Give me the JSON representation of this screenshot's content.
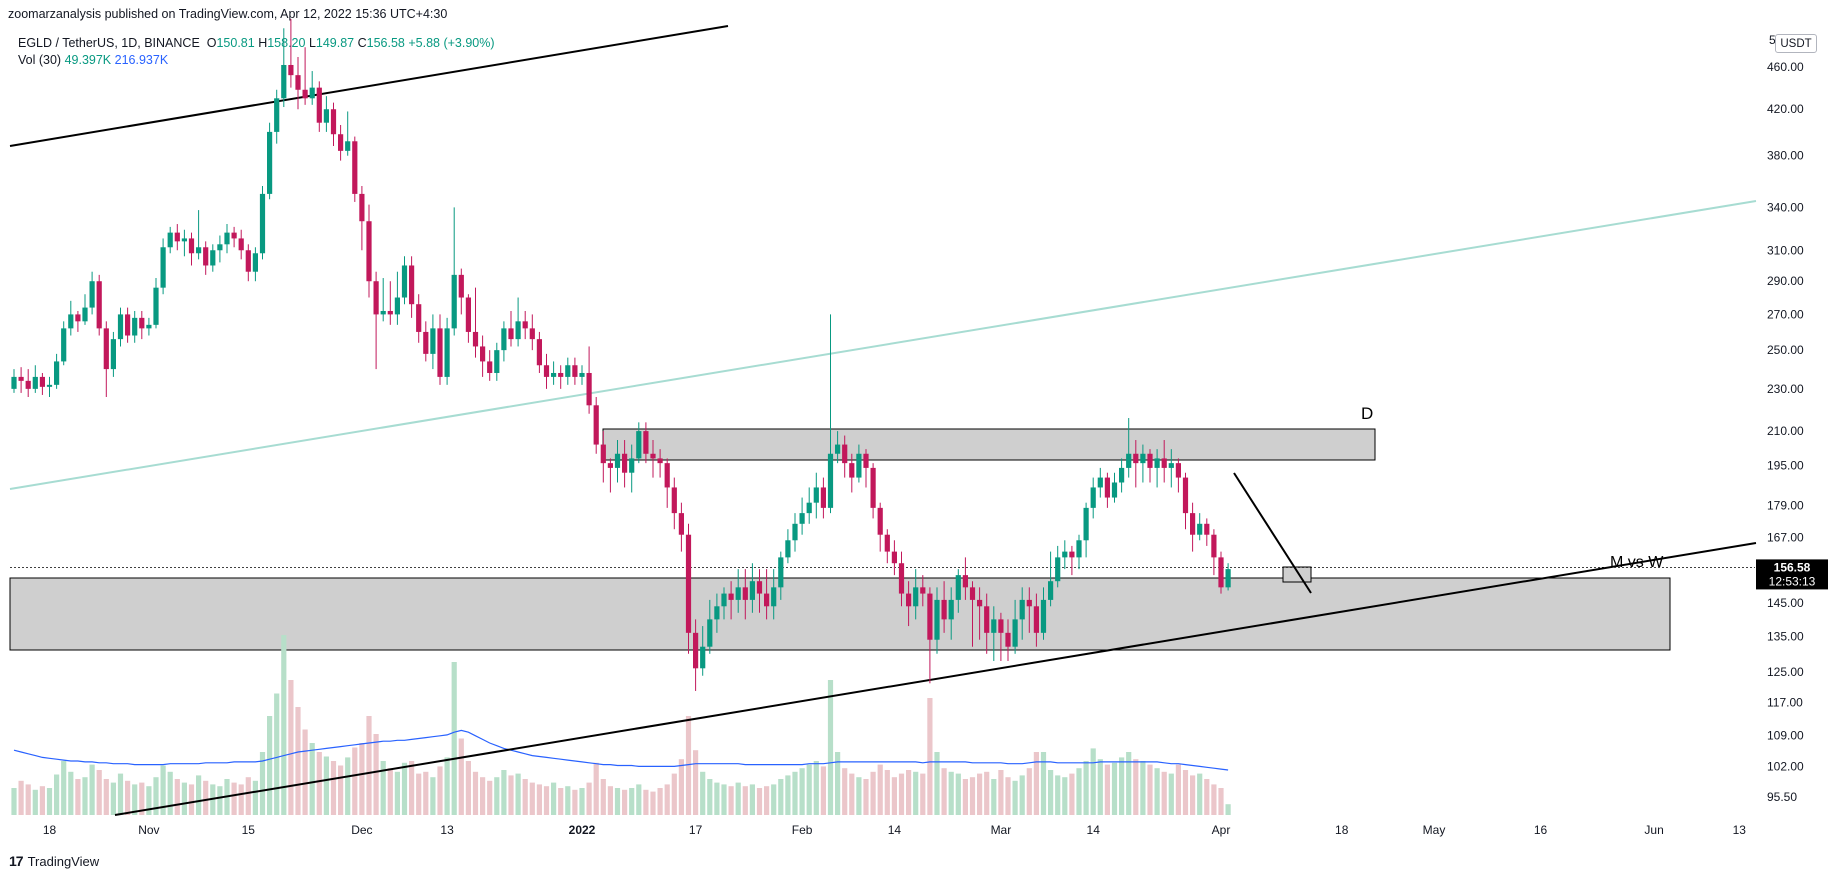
{
  "publisher_line": "zoomarzanalysis published on TradingView.com, Apr 12, 2022 15:36 UTC+4:30",
  "legend": {
    "symbol": "EGLD / TetherUS, 1D, BINANCE",
    "open_label": "O",
    "open": "150.81",
    "high_label": "H",
    "high": "158.20",
    "low_label": "L",
    "low": "149.87",
    "close_label": "C",
    "close": "156.58",
    "change": "+5.88 (+3.90%)",
    "vol_label": "Vol (30)",
    "vol_value": "49.397K",
    "vol_ma": "216.937K"
  },
  "currency_button": "USDT",
  "axis_top_fragment": "5",
  "price_tag": {
    "price": "156.58",
    "countdown": "12:53:13"
  },
  "annotations": {
    "zone_label": "D",
    "pattern_label": "M vs W"
  },
  "branding": "TradingView",
  "colors": {
    "up": "#089981",
    "down": "#c2185b",
    "vol_up": "#b7dfc9",
    "vol_down": "#ebc6ca",
    "zone": "#cfcfcf",
    "ma": "#2962ff",
    "channel": "#a7dcd2"
  },
  "chart_data": {
    "type": "candlestick",
    "y_scale": "log",
    "y_ticks": [
      95.5,
      102.0,
      109.0,
      117.0,
      125.0,
      135.0,
      145.0,
      156.58,
      167.0,
      179.0,
      195.0,
      210.0,
      230.0,
      250.0,
      270.0,
      290.0,
      310.0,
      340.0,
      380.0,
      420.0,
      460.0
    ],
    "y_tick_labels": [
      "95.50",
      "102.00",
      "109.00",
      "117.00",
      "125.00",
      "135.00",
      "145.00",
      "",
      "167.00",
      "179.00",
      "195.00",
      "210.00",
      "230.00",
      "250.00",
      "270.00",
      "290.00",
      "310.00",
      "340.00",
      "380.00",
      "420.00",
      "460.00"
    ],
    "x_labels": [
      "18",
      "Nov",
      "15",
      "Dec",
      "13",
      "2022",
      "17",
      "Feb",
      "14",
      "Mar",
      "14",
      "Apr",
      "18",
      "May",
      "16",
      "Jun",
      "13"
    ],
    "x_label_dates": [
      "2021-10-18",
      "2021-11-01",
      "2021-11-15",
      "2021-12-01",
      "2021-12-13",
      "2022-01-01",
      "2022-01-17",
      "2022-02-01",
      "2022-02-14",
      "2022-03-01",
      "2022-03-14",
      "2022-04-01",
      "2022-04-18",
      "2022-05-01",
      "2022-05-16",
      "2022-06-01",
      "2022-06-13"
    ],
    "candles": [
      [
        230,
        236,
        240,
        228
      ],
      [
        236,
        234,
        241,
        228
      ],
      [
        234,
        230,
        240,
        226
      ],
      [
        230,
        236,
        242,
        228
      ],
      [
        236,
        231,
        238,
        227
      ],
      [
        231,
        232,
        236,
        226
      ],
      [
        232,
        244,
        248,
        230
      ],
      [
        244,
        262,
        266,
        242
      ],
      [
        262,
        270,
        278,
        258
      ],
      [
        270,
        266,
        272,
        260
      ],
      [
        266,
        274,
        282,
        264
      ],
      [
        274,
        290,
        296,
        270
      ],
      [
        290,
        262,
        294,
        258
      ],
      [
        262,
        240,
        266,
        226
      ],
      [
        240,
        256,
        260,
        236
      ],
      [
        256,
        270,
        274,
        252
      ],
      [
        270,
        258,
        274,
        254
      ],
      [
        258,
        268,
        272,
        254
      ],
      [
        268,
        262,
        272,
        256
      ],
      [
        262,
        264,
        268,
        258
      ],
      [
        264,
        286,
        292,
        262
      ],
      [
        286,
        312,
        318,
        282
      ],
      [
        312,
        322,
        326,
        308
      ],
      [
        322,
        316,
        328,
        310
      ],
      [
        316,
        318,
        324,
        306
      ],
      [
        318,
        308,
        322,
        300
      ],
      [
        308,
        312,
        338,
        304
      ],
      [
        312,
        300,
        316,
        294
      ],
      [
        300,
        310,
        314,
        296
      ],
      [
        310,
        314,
        320,
        302
      ],
      [
        314,
        322,
        328,
        308
      ],
      [
        322,
        318,
        326,
        312
      ],
      [
        318,
        310,
        324,
        304
      ],
      [
        310,
        296,
        314,
        290
      ],
      [
        296,
        308,
        312,
        290
      ],
      [
        308,
        350,
        356,
        304
      ],
      [
        350,
        400,
        408,
        346
      ],
      [
        400,
        430,
        438,
        390
      ],
      [
        430,
        462,
        500,
        422
      ],
      [
        462,
        452,
        510,
        440
      ],
      [
        452,
        438,
        470,
        420
      ],
      [
        438,
        430,
        480,
        424
      ],
      [
        430,
        440,
        456,
        424
      ],
      [
        440,
        408,
        446,
        400
      ],
      [
        408,
        420,
        432,
        400
      ],
      [
        420,
        398,
        426,
        388
      ],
      [
        398,
        384,
        406,
        376
      ],
      [
        384,
        392,
        418,
        380
      ],
      [
        392,
        350,
        396,
        344
      ],
      [
        350,
        330,
        356,
        310
      ],
      [
        330,
        290,
        342,
        280
      ],
      [
        290,
        270,
        296,
        240
      ],
      [
        270,
        272,
        292,
        266
      ],
      [
        272,
        270,
        290,
        264
      ],
      [
        270,
        280,
        296,
        264
      ],
      [
        280,
        300,
        306,
        276
      ],
      [
        300,
        276,
        306,
        268
      ],
      [
        276,
        260,
        282,
        254
      ],
      [
        260,
        248,
        266,
        244
      ],
      [
        248,
        262,
        270,
        240
      ],
      [
        262,
        236,
        270,
        232
      ],
      [
        236,
        262,
        268,
        232
      ],
      [
        262,
        294,
        340,
        258
      ],
      [
        294,
        280,
        298,
        270
      ],
      [
        280,
        260,
        282,
        254
      ],
      [
        260,
        252,
        286,
        246
      ],
      [
        252,
        244,
        258,
        236
      ],
      [
        244,
        238,
        250,
        234
      ],
      [
        238,
        250,
        254,
        234
      ],
      [
        250,
        262,
        266,
        244
      ],
      [
        262,
        256,
        272,
        252
      ],
      [
        256,
        266,
        280,
        252
      ],
      [
        266,
        262,
        272,
        256
      ],
      [
        262,
        256,
        270,
        250
      ],
      [
        256,
        242,
        260,
        238
      ],
      [
        242,
        236,
        248,
        230
      ],
      [
        236,
        238,
        244,
        232
      ],
      [
        238,
        236,
        242,
        230
      ],
      [
        236,
        242,
        246,
        232
      ],
      [
        242,
        236,
        246,
        232
      ],
      [
        236,
        238,
        242,
        232
      ],
      [
        238,
        222,
        252,
        218
      ],
      [
        222,
        204,
        226,
        200
      ],
      [
        204,
        196,
        210,
        188
      ],
      [
        196,
        194,
        198,
        184
      ],
      [
        194,
        200,
        206,
        188
      ],
      [
        200,
        192,
        206,
        186
      ],
      [
        192,
        198,
        204,
        184
      ],
      [
        198,
        210,
        214,
        196
      ],
      [
        210,
        200,
        214,
        196
      ],
      [
        200,
        198,
        206,
        190
      ],
      [
        198,
        196,
        202,
        190
      ],
      [
        196,
        186,
        198,
        178
      ],
      [
        186,
        176,
        190,
        170
      ],
      [
        176,
        168,
        180,
        162
      ],
      [
        168,
        136,
        172,
        130
      ],
      [
        136,
        126,
        140,
        120
      ],
      [
        126,
        132,
        138,
        124
      ],
      [
        132,
        140,
        146,
        130
      ],
      [
        140,
        144,
        148,
        136
      ],
      [
        144,
        148,
        150,
        140
      ],
      [
        148,
        146,
        152,
        140
      ],
      [
        146,
        150,
        156,
        142
      ],
      [
        150,
        146,
        156,
        140
      ],
      [
        146,
        152,
        158,
        142
      ],
      [
        152,
        148,
        156,
        142
      ],
      [
        148,
        144,
        156,
        140
      ],
      [
        144,
        150,
        156,
        140
      ],
      [
        150,
        160,
        162,
        146
      ],
      [
        160,
        166,
        170,
        158
      ],
      [
        166,
        172,
        176,
        162
      ],
      [
        172,
        176,
        182,
        168
      ],
      [
        176,
        180,
        186,
        172
      ],
      [
        180,
        186,
        192,
        174
      ],
      [
        186,
        178,
        190,
        174
      ],
      [
        178,
        200,
        270,
        176
      ],
      [
        200,
        204,
        210,
        196
      ],
      [
        204,
        196,
        208,
        190
      ],
      [
        196,
        190,
        200,
        184
      ],
      [
        190,
        200,
        204,
        188
      ],
      [
        200,
        194,
        202,
        186
      ],
      [
        194,
        178,
        196,
        174
      ],
      [
        178,
        168,
        180,
        162
      ],
      [
        168,
        162,
        170,
        158
      ],
      [
        162,
        158,
        166,
        154
      ],
      [
        158,
        148,
        162,
        144
      ],
      [
        148,
        144,
        152,
        138
      ],
      [
        144,
        150,
        156,
        140
      ],
      [
        150,
        148,
        154,
        144
      ],
      [
        148,
        134,
        150,
        122
      ],
      [
        134,
        146,
        150,
        130
      ],
      [
        146,
        140,
        152,
        136
      ],
      [
        140,
        146,
        150,
        134
      ],
      [
        146,
        154,
        156,
        142
      ],
      [
        154,
        150,
        160,
        146
      ],
      [
        150,
        146,
        152,
        132
      ],
      [
        146,
        144,
        150,
        134
      ],
      [
        144,
        136,
        148,
        130
      ],
      [
        136,
        140,
        144,
        128
      ],
      [
        140,
        136,
        142,
        128
      ],
      [
        136,
        132,
        140,
        128
      ],
      [
        132,
        140,
        146,
        130
      ],
      [
        140,
        146,
        150,
        134
      ],
      [
        146,
        144,
        150,
        136
      ],
      [
        144,
        136,
        148,
        132
      ],
      [
        136,
        146,
        150,
        134
      ],
      [
        146,
        152,
        162,
        144
      ],
      [
        152,
        160,
        164,
        150
      ],
      [
        160,
        162,
        166,
        156
      ],
      [
        162,
        160,
        164,
        154
      ],
      [
        160,
        166,
        168,
        156
      ],
      [
        166,
        178,
        180,
        160
      ],
      [
        178,
        186,
        190,
        174
      ],
      [
        186,
        190,
        194,
        182
      ],
      [
        190,
        182,
        192,
        178
      ],
      [
        182,
        188,
        192,
        180
      ],
      [
        188,
        194,
        198,
        184
      ],
      [
        194,
        200,
        216,
        190
      ],
      [
        200,
        196,
        206,
        186
      ],
      [
        196,
        200,
        204,
        188
      ],
      [
        200,
        194,
        202,
        188
      ],
      [
        194,
        198,
        202,
        186
      ],
      [
        198,
        194,
        206,
        188
      ],
      [
        194,
        196,
        202,
        186
      ],
      [
        196,
        190,
        198,
        184
      ],
      [
        190,
        176,
        192,
        170
      ],
      [
        176,
        168,
        180,
        162
      ],
      [
        168,
        172,
        176,
        166
      ],
      [
        172,
        168,
        174,
        164
      ],
      [
        168,
        160,
        170,
        154
      ],
      [
        160,
        150,
        162,
        148
      ],
      [
        150,
        156,
        158,
        149
      ]
    ],
    "volume": [
      30,
      38,
      34,
      28,
      32,
      30,
      45,
      60,
      48,
      40,
      42,
      56,
      50,
      40,
      36,
      46,
      38,
      34,
      36,
      32,
      42,
      55,
      48,
      40,
      36,
      34,
      44,
      38,
      34,
      32,
      40,
      36,
      34,
      42,
      38,
      70,
      110,
      135,
      200,
      150,
      120,
      95,
      80,
      70,
      65,
      60,
      55,
      64,
      75,
      80,
      110,
      90,
      60,
      52,
      48,
      58,
      60,
      46,
      48,
      42,
      54,
      64,
      170,
      85,
      60,
      48,
      42,
      38,
      42,
      50,
      44,
      46,
      40,
      36,
      34,
      32,
      36,
      30,
      32,
      28,
      30,
      36,
      58,
      40,
      32,
      30,
      28,
      30,
      34,
      28,
      26,
      30,
      34,
      46,
      62,
      110,
      72,
      48,
      40,
      36,
      34,
      32,
      36,
      32,
      34,
      30,
      32,
      34,
      40,
      44,
      48,
      52,
      56,
      60,
      54,
      150,
      70,
      52,
      46,
      42,
      40,
      48,
      56,
      50,
      42,
      46,
      50,
      48,
      46,
      130,
      70,
      52,
      48,
      46,
      40,
      42,
      46,
      48,
      40,
      50,
      42,
      38,
      44,
      52,
      70,
      70,
      50,
      44,
      42,
      46,
      52,
      60,
      74,
      62,
      56,
      58,
      64,
      70,
      62,
      60,
      56,
      52,
      48,
      46,
      56,
      50,
      44,
      46,
      40,
      34,
      30,
      12
    ],
    "vol_ma": [
      72,
      70,
      68,
      66,
      64,
      63,
      62,
      61,
      60,
      60,
      59,
      59,
      58,
      58,
      57,
      57,
      57,
      56,
      56,
      56,
      56,
      56,
      57,
      57,
      57,
      57,
      57,
      58,
      58,
      58,
      58,
      59,
      59,
      59,
      59,
      60,
      62,
      64,
      66,
      68,
      70,
      71,
      72,
      73,
      74,
      75,
      76,
      77,
      78,
      79,
      80,
      81,
      82,
      82,
      83,
      83,
      84,
      85,
      86,
      87,
      88,
      89,
      92,
      94,
      92,
      88,
      84,
      80,
      77,
      74,
      72,
      70,
      68,
      66,
      65,
      64,
      63,
      62,
      61,
      60,
      59,
      58,
      57,
      56,
      56,
      55,
      55,
      55,
      54,
      54,
      54,
      54,
      54,
      54,
      55,
      56,
      57,
      57,
      57,
      57,
      57,
      57,
      57,
      56,
      56,
      56,
      56,
      56,
      56,
      56,
      56,
      56,
      57,
      57,
      57,
      58,
      59,
      59,
      59,
      59,
      59,
      59,
      59,
      59,
      59,
      59,
      59,
      59,
      58,
      59,
      59,
      59,
      59,
      59,
      59,
      58,
      58,
      58,
      58,
      58,
      57,
      57,
      57,
      58,
      59,
      59,
      59,
      58,
      58,
      58,
      58,
      58,
      58,
      59,
      59,
      59,
      59,
      59,
      59,
      59,
      59,
      59,
      58,
      57,
      57,
      56,
      55,
      54,
      53,
      52,
      51,
      50
    ]
  }
}
